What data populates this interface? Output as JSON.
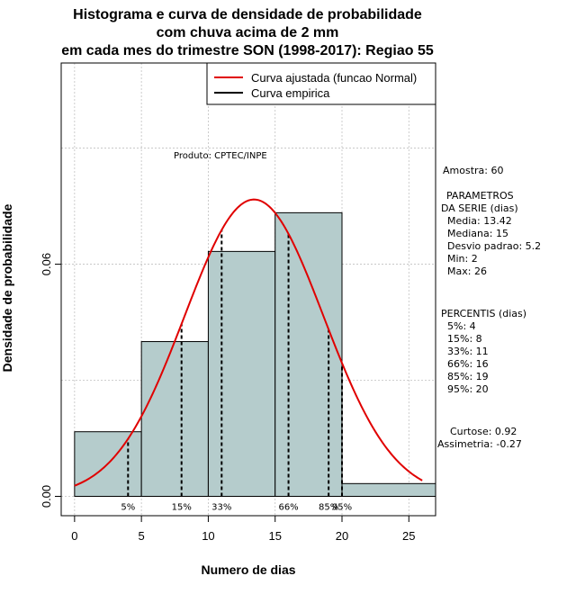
{
  "chart_data": {
    "type": "bar",
    "title": [
      "Histograma e curva de densidade de probabilidade",
      "com chuva acima de 2 mm",
      "em cada mes do trimestre SON (1998-2017): Regiao 55"
    ],
    "xlabel": "Numero de dias",
    "ylabel": "Densidade de probabilidade",
    "xlim": [
      -1,
      27
    ],
    "ylim": [
      -0.005,
      0.112
    ],
    "x_ticks": [
      0,
      5,
      10,
      15,
      20,
      25
    ],
    "y_ticks": [
      0.0,
      0.06
    ],
    "y_tick_labels": [
      "0.00",
      "0.06"
    ],
    "grid_x": [
      0,
      5,
      10,
      15,
      20,
      25
    ],
    "grid_y": [
      0.0,
      0.03,
      0.06,
      0.09
    ],
    "bins": [
      {
        "start": 0,
        "end": 5,
        "density": 0.0167
      },
      {
        "start": 5,
        "end": 10,
        "density": 0.04
      },
      {
        "start": 10,
        "end": 15,
        "density": 0.0633
      },
      {
        "start": 15,
        "end": 20,
        "density": 0.0733
      },
      {
        "start": 20,
        "end": 27,
        "density": 0.0033
      }
    ],
    "bar_color": "#b5cccc",
    "normal_fit": {
      "mean": 13.42,
      "sd": 5.2,
      "x_from": 0,
      "x_to": 26,
      "color": "#e00000"
    },
    "percentile_lines": [
      {
        "label": "5%",
        "x": 4
      },
      {
        "label": "15%",
        "x": 8
      },
      {
        "label": "33%",
        "x": 11
      },
      {
        "label": "66%",
        "x": 16
      },
      {
        "label": "85%",
        "x": 19
      },
      {
        "label": "95%",
        "x": 20
      }
    ],
    "legend": {
      "position": "top-right",
      "items": [
        {
          "label": "Curva ajustada (funcao Normal)",
          "color": "#e00000"
        },
        {
          "label": "Curva empirica",
          "color": "#000000"
        }
      ]
    },
    "product_label": "Produto: CPTEC/INPE",
    "stats": {
      "sample": "Amostra: 60",
      "params_title": [
        "PARAMETROS",
        "DA SERIE (dias)"
      ],
      "params": [
        "Media: 13.42",
        "Mediana: 15",
        "Desvio padrao: 5.2",
        "Min: 2",
        "Max: 26"
      ],
      "percentis_title": "PERCENTIS (dias)",
      "percentis": [
        "5%: 4",
        "15%: 8",
        "33%: 11",
        "66%: 16",
        "85%: 19",
        "95%: 20"
      ],
      "curtose": "Curtose: 0.92",
      "assimetria": "Assimetria: -0.27"
    }
  }
}
